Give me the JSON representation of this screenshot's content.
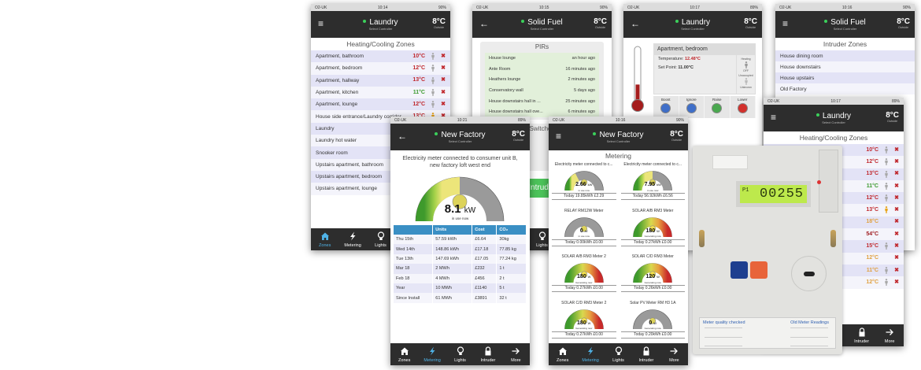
{
  "common": {
    "carrier": "O2-UK",
    "select_controller": "Select Controller",
    "outside_temp": "8°C",
    "outside_label": "Outside",
    "tabs": [
      {
        "label": "Zones",
        "icon": "home-icon"
      },
      {
        "label": "Metering",
        "icon": "lightning-icon"
      },
      {
        "label": "Lights",
        "icon": "lightbulb-icon"
      },
      {
        "label": "Intruder",
        "icon": "lock-icon"
      },
      {
        "label": "More",
        "icon": "arrow-right-icon"
      }
    ],
    "active_tab_color": "#4fb3e8",
    "header_color": "#2d2d2d"
  },
  "phones": [
    {
      "id": "laundry-zones",
      "kind": "zones",
      "time": "10:14",
      "battery": "90%",
      "nav": "menu",
      "controller": "Laundry",
      "footer": true,
      "active_tab": 0,
      "section_title": "Heating/Cooling Zones",
      "rows": [
        {
          "name": "Apartment, bathroom",
          "temp": "10°C",
          "color": "#c0282d",
          "occupancy": "unoccupied"
        },
        {
          "name": "Apartment, bedroom",
          "temp": "12°C",
          "color": "#c0282d",
          "occupancy": "unoccupied"
        },
        {
          "name": "Apartment, hallway",
          "temp": "13°C",
          "color": "#c0282d",
          "occupancy": "unoccupied"
        },
        {
          "name": "Apartment, kitchen",
          "temp": "11°C",
          "color": "#3c9a2f",
          "occupancy": "unoccupied"
        },
        {
          "name": "Apartment, lounge",
          "temp": "12°C",
          "color": "#c0282d",
          "occupancy": "unoccupied"
        },
        {
          "name": "House side entrance/Laundry corridor",
          "temp": "13°C",
          "color": "#c0282d",
          "occupancy": "occupied"
        },
        {
          "name": "Laundry"
        },
        {
          "name": "Laundry hot water"
        },
        {
          "name": "Snooker room"
        },
        {
          "name": "Upstairs apartment, bathroom"
        },
        {
          "name": "Upstairs apartment, bedroom"
        },
        {
          "name": "Upstairs apartment, lounge"
        }
      ]
    },
    {
      "id": "solid-fuel-pirs",
      "kind": "pirs",
      "time": "10:15",
      "battery": "90%",
      "nav": "back",
      "controller": "Solid Fuel",
      "footer": true,
      "active_tab": -1,
      "panel_title": "PIRs",
      "rows": [
        {
          "name": "House lounge",
          "when": "an hour ago"
        },
        {
          "name": "Ante Room",
          "when": "16 minutes ago"
        },
        {
          "name": "Heathers lounge",
          "when": "2 minutes ago"
        },
        {
          "name": "Conservatory wall",
          "when": "5 days ago"
        },
        {
          "name": "House downstairs hall in ...",
          "when": "25 minutes ago"
        },
        {
          "name": "House downstairs hall ove...",
          "when": "6 minutes ago"
        }
      ],
      "switches_title": "Switches",
      "intruder_button": "Intruder"
    },
    {
      "id": "laundry-thermostat",
      "kind": "thermostat",
      "time": "10:17",
      "battery": "89%",
      "nav": "back",
      "controller": "Laundry",
      "footer": false,
      "zone": "Apartment, bedroom",
      "temperature_label": "Temperature:",
      "temperature": "12.48°C",
      "setpoint_label": "Set Point:",
      "setpoint": "11.00°C",
      "mode_label": "Heating",
      "mode_value": "OFF",
      "occupancy_label": "Unoccupied",
      "occupancy_value": "Unknown",
      "thermometer_level": 0.3,
      "buttons": [
        {
          "label": "Boost",
          "color": "#3f6fc9"
        },
        {
          "label": "Ignore",
          "color": "#3f6fc9"
        },
        {
          "label": "Raise",
          "color": "#4aa84f"
        },
        {
          "label": "Lower",
          "color": "#d2302c"
        }
      ]
    },
    {
      "id": "intruder-zones",
      "kind": "intruder",
      "time": "10:16",
      "battery": "90%",
      "nav": "menu",
      "controller": "Solid Fuel",
      "footer": false,
      "section_title": "Intruder Zones",
      "rows": [
        {
          "name": "House dining room"
        },
        {
          "name": "House downstairs"
        },
        {
          "name": "House upstairs"
        },
        {
          "name": "Old Factory"
        }
      ]
    },
    {
      "id": "laundry-zones-2",
      "kind": "zones",
      "time": "10:17",
      "battery": "89%",
      "nav": "menu",
      "controller": "Laundry",
      "footer": true,
      "active_tab": -1,
      "section_title": "Heating/Cooling Zones",
      "rows": [
        {
          "temp": "10°C",
          "color": "#c0282d",
          "occupancy": "unoccupied"
        },
        {
          "temp": "12°C",
          "color": "#c0282d",
          "occupancy": "unoccupied"
        },
        {
          "temp": "13°C",
          "color": "#c0282d",
          "occupancy": "unoccupied"
        },
        {
          "temp": "11°C",
          "color": "#3c9a2f",
          "occupancy": "unoccupied"
        },
        {
          "temp": "12°C",
          "color": "#c0282d",
          "occupancy": "unoccupied"
        },
        {
          "name": "dor",
          "temp": "13°C",
          "color": "#c0282d",
          "occupancy": "occupied"
        },
        {
          "temp": "18°C",
          "color": "#e0a040"
        },
        {
          "temp": "54°C",
          "color": "#a01e22"
        },
        {
          "temp": "15°C",
          "color": "#c0282d",
          "occupancy": "unoccupied"
        },
        {
          "temp": "12°C",
          "color": "#e0a040"
        },
        {
          "temp": "11°C",
          "color": "#e0a040",
          "occupancy": "unoccupied"
        },
        {
          "temp": "12°C",
          "color": "#e0a040",
          "occupancy": "unoccupied"
        }
      ]
    },
    {
      "id": "new-factory",
      "kind": "meter",
      "time": "10:21",
      "battery": "89%",
      "nav": "back",
      "controller": "New Factory",
      "footer": true,
      "active_tab": 1,
      "description": "Electricity meter connected to consumer unit B, new factory loft west end",
      "gauge": {
        "value": "8.1",
        "unit": "kW",
        "caption": "in use now",
        "fill": 0.5,
        "mode": "consumption"
      },
      "table": {
        "columns": [
          "",
          "Units",
          "Cost",
          "CO₂"
        ],
        "rows": [
          [
            "Thu 15th",
            "57.59 kWh",
            "£6.64",
            "30kg"
          ],
          [
            "Wed 14th",
            "148.86 kWh",
            "£17.18",
            "77.85 kg"
          ],
          [
            "Tue 13th",
            "147.69 kWh",
            "£17.05",
            "77.24 kg"
          ],
          [
            "Mar 18",
            "2 MWh",
            "£232",
            "1 t"
          ],
          [
            "Feb 18",
            "4 MWh",
            "£456",
            "2 t"
          ],
          [
            "Year",
            "10 MWh",
            "£1140",
            "5 t"
          ],
          [
            "Since Install",
            "61 MWh",
            "£3891",
            "32 t"
          ]
        ]
      }
    },
    {
      "id": "metering",
      "kind": "metering",
      "time": "10:16",
      "battery": "90%",
      "nav": "menu",
      "controller": "New Factory",
      "footer": true,
      "active_tab": 1,
      "section_title": "Metering",
      "meters": [
        {
          "title": "Electricity meter connected to c...",
          "value": "2.66",
          "unit": "kW",
          "caption": "in use now",
          "today": "Today 19.85kWh £2.29",
          "fill": 0.35,
          "mode": "consumption"
        },
        {
          "title": "Electricity meter connected to c...",
          "value": "7.95",
          "unit": "kW",
          "caption": "in use now",
          "today": "Today 56.92kWh £6.56",
          "fill": 0.5,
          "mode": "consumption"
        },
        {
          "title": "RELAY RM12W Meter",
          "value": "0",
          "unit": "W",
          "caption": "in use now",
          "today": "Today 0.00kWh £0.00",
          "fill": 0,
          "mode": "consumption"
        },
        {
          "title": "SOLAR A/B RM3 Meter",
          "value": "180",
          "unit": "W",
          "caption": "Generating now",
          "today": "Today 0.27kWh £0.00",
          "fill": 1,
          "mode": "generation"
        },
        {
          "title": "SOLAR A/B RM3 Meter 2",
          "value": "180",
          "unit": "W",
          "caption": "Generating now",
          "today": "Today 0.27kWh £0.00",
          "fill": 1,
          "mode": "generation"
        },
        {
          "title": "SOLAR C/D RM3 Meter",
          "value": "120",
          "unit": "W",
          "caption": "Generating now",
          "today": "Today 0.26kWh £0.00",
          "fill": 1,
          "mode": "generation"
        },
        {
          "title": "SOLAR C/D RM3 Meter 2",
          "value": "180",
          "unit": "W",
          "caption": "Generating now",
          "today": "Today 0.27kWh £0.00",
          "fill": 1,
          "mode": "generation"
        },
        {
          "title": "Solar PV Meter RM H3 1A",
          "value": "0",
          "unit": "W",
          "caption": "Generating now",
          "today": "Today 0.20kWh £0.00",
          "fill": 0,
          "mode": "generation"
        }
      ]
    }
  ],
  "meter_photo": {
    "display_reading": "00255",
    "display_register": "P1",
    "left_panel_title": "Meter quality checked",
    "right_panel_title": "Old Meter Readings",
    "lcd_color": "#bde94c",
    "left_button_color": "#1e3f8f",
    "right_button_color": "#e8643a"
  }
}
